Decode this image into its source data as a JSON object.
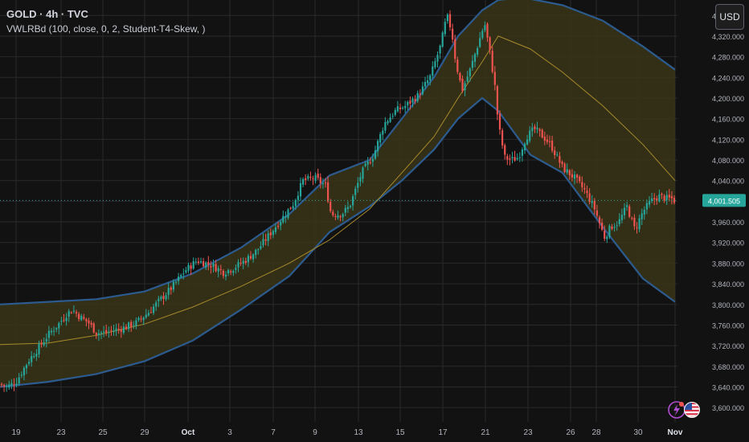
{
  "header": {
    "symbol_line": "GOLD · 4h · TVC",
    "indicator_line": "VWLRBd (100, close, 0, 2, Student-T4-Skew, )"
  },
  "currency_button": "USD",
  "icons": [
    "lightning-icon",
    "us-flag-icon"
  ],
  "colors": {
    "background": "#121212",
    "grid": "#2a2a2a",
    "up": "#26a69a",
    "down": "#ef5350",
    "band_fill": "#3a3518",
    "band_edge": "#2c5b8f",
    "midline": "#a88a2c",
    "current_price_line": "#26a69a"
  },
  "chart_data": {
    "type": "candlestick",
    "title": "GOLD · 4h · TVC",
    "ylim": [
      3580,
      4390
    ],
    "y_ticks": [
      "3,600.000",
      "3,640.000",
      "3,680.000",
      "3,720.000",
      "3,760.000",
      "3,800.000",
      "3,840.000",
      "3,880.000",
      "3,920.000",
      "3,960.000",
      "4,000.000",
      "4,040.000",
      "4,080.000",
      "4,120.000",
      "4,160.000",
      "4,200.000",
      "4,240.000",
      "4,280.000",
      "4,320.000",
      "4,360.000"
    ],
    "x_ticks": [
      "19",
      "23",
      "25",
      "29",
      "Oct",
      "3",
      "7",
      "9",
      "13",
      "15",
      "17",
      "21",
      "23",
      "26",
      "28",
      "30",
      "Nov"
    ],
    "current_price": 4001.505,
    "current_price_label": "4,001.505",
    "close_path": [
      [
        0,
        3645
      ],
      [
        8,
        3640
      ],
      [
        20,
        3650
      ],
      [
        35,
        3690
      ],
      [
        50,
        3720
      ],
      [
        62,
        3745
      ],
      [
        72,
        3760
      ],
      [
        82,
        3780
      ],
      [
        90,
        3790
      ],
      [
        100,
        3775
      ],
      [
        110,
        3765
      ],
      [
        120,
        3745
      ],
      [
        130,
        3745
      ],
      [
        142,
        3750
      ],
      [
        155,
        3755
      ],
      [
        170,
        3765
      ],
      [
        185,
        3785
      ],
      [
        200,
        3810
      ],
      [
        215,
        3835
      ],
      [
        230,
        3865
      ],
      [
        245,
        3885
      ],
      [
        255,
        3880
      ],
      [
        265,
        3875
      ],
      [
        278,
        3862
      ],
      [
        290,
        3870
      ],
      [
        305,
        3885
      ],
      [
        320,
        3905
      ],
      [
        335,
        3935
      ],
      [
        350,
        3965
      ],
      [
        365,
        3995
      ],
      [
        377,
        4040
      ],
      [
        392,
        4045
      ],
      [
        405,
        4030
      ],
      [
        412,
        3975
      ],
      [
        425,
        3975
      ],
      [
        435,
        3990
      ],
      [
        450,
        4055
      ],
      [
        465,
        4090
      ],
      [
        478,
        4150
      ],
      [
        492,
        4175
      ],
      [
        505,
        4185
      ],
      [
        520,
        4205
      ],
      [
        535,
        4240
      ],
      [
        548,
        4300
      ],
      [
        556,
        4360
      ],
      [
        562,
        4330
      ],
      [
        567,
        4270
      ],
      [
        575,
        4215
      ],
      [
        585,
        4255
      ],
      [
        595,
        4305
      ],
      [
        603,
        4345
      ],
      [
        610,
        4285
      ],
      [
        616,
        4220
      ],
      [
        620,
        4150
      ],
      [
        628,
        4085
      ],
      [
        636,
        4080
      ],
      [
        645,
        4085
      ],
      [
        655,
        4125
      ],
      [
        665,
        4140
      ],
      [
        673,
        4130
      ],
      [
        685,
        4110
      ],
      [
        700,
        4065
      ],
      [
        715,
        4045
      ],
      [
        728,
        4020
      ],
      [
        740,
        3985
      ],
      [
        752,
        3930
      ],
      [
        760,
        3950
      ],
      [
        770,
        3960
      ],
      [
        780,
        3990
      ],
      [
        790,
        3945
      ],
      [
        800,
        3980
      ],
      [
        810,
        4000
      ],
      [
        820,
        4010
      ],
      [
        830,
        4005
      ],
      [
        836,
        4005
      ],
      [
        840,
        4000
      ]
    ],
    "bands": {
      "upper": [
        [
          0,
          3800
        ],
        [
          60,
          3805
        ],
        [
          120,
          3810
        ],
        [
          180,
          3825
        ],
        [
          240,
          3860
        ],
        [
          300,
          3910
        ],
        [
          360,
          3975
        ],
        [
          410,
          4050
        ],
        [
          460,
          4080
        ],
        [
          500,
          4160
        ],
        [
          540,
          4240
        ],
        [
          570,
          4320
        ],
        [
          600,
          4370
        ],
        [
          620,
          4390
        ],
        [
          650,
          4395
        ],
        [
          700,
          4380
        ],
        [
          750,
          4350
        ],
        [
          800,
          4300
        ],
        [
          840,
          4255
        ]
      ],
      "middle": [
        [
          0,
          3722
        ],
        [
          60,
          3725
        ],
        [
          120,
          3740
        ],
        [
          180,
          3762
        ],
        [
          240,
          3795
        ],
        [
          300,
          3835
        ],
        [
          360,
          3880
        ],
        [
          410,
          3925
        ],
        [
          460,
          3985
        ],
        [
          500,
          4055
        ],
        [
          540,
          4125
        ],
        [
          570,
          4200
        ],
        [
          600,
          4270
        ],
        [
          620,
          4320
        ],
        [
          660,
          4295
        ],
        [
          700,
          4250
        ],
        [
          750,
          4185
        ],
        [
          800,
          4110
        ],
        [
          840,
          4040
        ]
      ],
      "lower": [
        [
          0,
          3640
        ],
        [
          60,
          3650
        ],
        [
          120,
          3665
        ],
        [
          180,
          3690
        ],
        [
          240,
          3730
        ],
        [
          300,
          3790
        ],
        [
          360,
          3855
        ],
        [
          410,
          3940
        ],
        [
          460,
          3990
        ],
        [
          500,
          4040
        ],
        [
          540,
          4100
        ],
        [
          570,
          4160
        ],
        [
          600,
          4200
        ],
        [
          620,
          4175
        ],
        [
          660,
          4090
        ],
        [
          700,
          4055
        ],
        [
          750,
          3950
        ],
        [
          800,
          3850
        ],
        [
          840,
          3805
        ]
      ]
    }
  }
}
